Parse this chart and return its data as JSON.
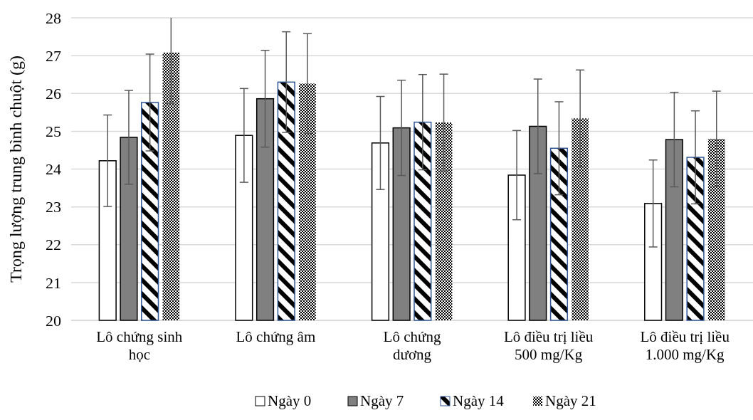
{
  "chart_data": {
    "type": "bar",
    "ylabel": "Trọng lượng trung bình chuột (g)",
    "categories": [
      "Lô chứng sinh học",
      "Lô chứng âm",
      "Lô chứng dương",
      "Lô điều trị liều 500 mg/Kg",
      "Lô điều trị liều 1.000 mg/Kg"
    ],
    "series": [
      {
        "name": "Ngày 0",
        "color": "#ffffff",
        "values": [
          24.22,
          24.89,
          24.69,
          23.84,
          23.09
        ],
        "errors": [
          1.21,
          1.24,
          1.23,
          1.18,
          1.15
        ]
      },
      {
        "name": "Ngày 7",
        "color": "#808080",
        "values": [
          24.84,
          25.86,
          25.09,
          25.13,
          24.78
        ],
        "errors": [
          1.24,
          1.28,
          1.26,
          1.25,
          1.25
        ]
      },
      {
        "name": "Ngày 14",
        "color": "#2f5597",
        "values": [
          25.76,
          26.3,
          25.24,
          24.55,
          24.31
        ],
        "errors": [
          1.28,
          1.33,
          1.26,
          1.23,
          1.23
        ]
      },
      {
        "name": "Ngày 21",
        "color": "#000000",
        "values": [
          27.08,
          26.26,
          25.23,
          25.34,
          24.8
        ],
        "errors": [
          [
            25.73,
            28.0
          ],
          1.32,
          1.28,
          1.28,
          1.26
        ]
      }
    ],
    "ylim": [
      20,
      28
    ],
    "yticks": [
      20,
      21,
      22,
      23,
      24,
      25,
      26,
      27,
      28
    ],
    "grid": "y",
    "legend": "bottom"
  }
}
